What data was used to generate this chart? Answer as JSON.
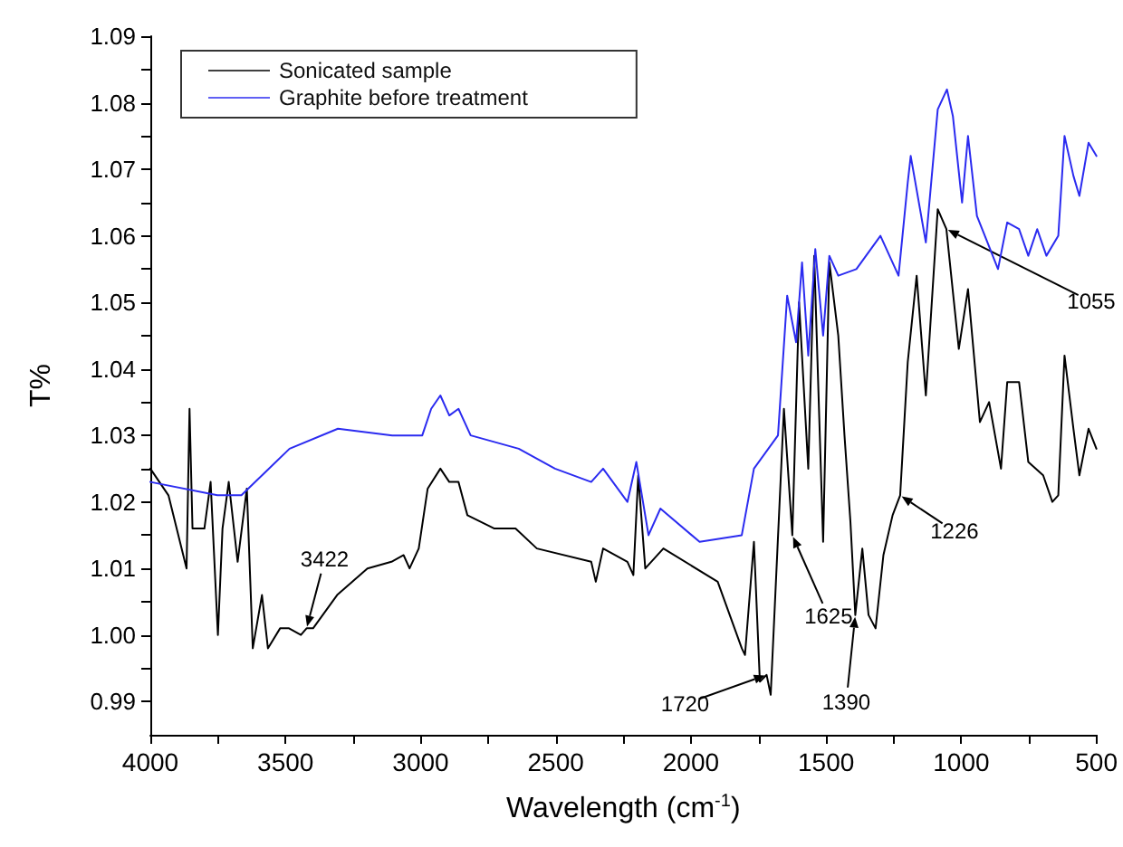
{
  "chart_data": {
    "type": "line",
    "xlabel": "Wavelength (cm$^{-1}$)",
    "ylabel": "T%",
    "xlim": [
      4000,
      500
    ],
    "xticks": [
      4000,
      {
        "value": 3750,
        "label": null
      },
      3500,
      {
        "value": 3250,
        "label": null
      },
      3000,
      {
        "value": 2750,
        "label": null
      },
      2500,
      {
        "value": 2250,
        "label": null
      },
      2000,
      {
        "value": 1750,
        "label": null
      },
      1500,
      {
        "value": 1250,
        "label": null
      },
      1000,
      {
        "value": 750,
        "label": null
      },
      500
    ],
    "ylim": [
      0.985,
      1.09
    ],
    "yticks": [
      {
        "value": 0.99,
        "label": "0.99"
      },
      {
        "value": 0.995,
        "label": null
      },
      {
        "value": 1.0,
        "label": "1.00"
      },
      {
        "value": 1.005,
        "label": null
      },
      {
        "value": 1.01,
        "label": "1.01"
      },
      {
        "value": 1.015,
        "label": null
      },
      {
        "value": 1.02,
        "label": "1.02"
      },
      {
        "value": 1.025,
        "label": null
      },
      {
        "value": 1.03,
        "label": "1.03"
      },
      {
        "value": 1.035,
        "label": null
      },
      {
        "value": 1.04,
        "label": "1.04"
      },
      {
        "value": 1.045,
        "label": null
      },
      {
        "value": 1.05,
        "label": "1.05"
      },
      {
        "value": 1.055,
        "label": null
      },
      {
        "value": 1.06,
        "label": "1.06"
      },
      {
        "value": 1.065,
        "label": null
      },
      {
        "value": 1.07,
        "label": "1.07"
      },
      {
        "value": 1.075,
        "label": null
      },
      {
        "value": 1.08,
        "label": "1.08"
      },
      {
        "value": 1.085,
        "label": null
      },
      {
        "value": 1.09,
        "label": "1.09"
      }
    ],
    "grid": false,
    "legend": "top left",
    "marker": "none",
    "line_style": "solid",
    "series": [
      {
        "name": "Sonicated sample",
        "color": "#000000",
        "x": [
          4000,
          3933,
          3866,
          3855,
          3844,
          3800,
          3777,
          3750,
          3733,
          3710,
          3677,
          3643,
          3621,
          3587,
          3565,
          3520,
          3487,
          3443,
          3422,
          3398,
          3309,
          3197,
          3108,
          3063,
          3041,
          3007,
          2974,
          2927,
          2894,
          2860,
          2827,
          2727,
          2649,
          2570,
          2369,
          2352,
          2325,
          2235,
          2213,
          2195,
          2169,
          2102,
          1901,
          1812,
          1800,
          1767,
          1745,
          1720,
          1705,
          1656,
          1625,
          1600,
          1566,
          1544,
          1511,
          1488,
          1455,
          1432,
          1410,
          1392,
          1366,
          1343,
          1317,
          1288,
          1254,
          1226,
          1198,
          1165,
          1131,
          1087,
          1055,
          1009,
          975,
          931,
          897,
          853,
          830,
          786,
          752,
          697,
          663,
          641,
          618,
          585,
          563,
          529,
          500
        ],
        "values": [
          1.025,
          1.021,
          1.01,
          1.034,
          1.016,
          1.016,
          1.023,
          1.0,
          1.016,
          1.023,
          1.011,
          1.022,
          0.998,
          1.006,
          0.998,
          1.001,
          1.001,
          1.0,
          1.001,
          1.001,
          1.006,
          1.01,
          1.011,
          1.012,
          1.01,
          1.013,
          1.022,
          1.025,
          1.023,
          1.023,
          1.018,
          1.016,
          1.016,
          1.013,
          1.011,
          1.008,
          1.013,
          1.011,
          1.009,
          1.024,
          1.01,
          1.013,
          1.008,
          0.998,
          0.997,
          1.014,
          0.993,
          0.994,
          0.991,
          1.034,
          1.015,
          1.05,
          1.025,
          1.057,
          1.014,
          1.056,
          1.045,
          1.03,
          1.017,
          1.003,
          1.013,
          1.003,
          1.001,
          1.012,
          1.018,
          1.021,
          1.041,
          1.054,
          1.036,
          1.064,
          1.061,
          1.043,
          1.052,
          1.032,
          1.035,
          1.025,
          1.038,
          1.038,
          1.026,
          1.024,
          1.02,
          1.021,
          1.042,
          1.031,
          1.024,
          1.031,
          1.028
        ]
      },
      {
        "name": "Graphite before treatment",
        "color": "#2b2bf0",
        "x": [
          4000,
          3752,
          3663,
          3485,
          3306,
          3105,
          2994,
          2961,
          2927,
          2894,
          2860,
          2815,
          2637,
          2503,
          2369,
          2325,
          2235,
          2202,
          2157,
          2113,
          1968,
          1812,
          1767,
          1678,
          1644,
          1611,
          1589,
          1566,
          1540,
          1511,
          1488,
          1455,
          1388,
          1299,
          1232,
          1198,
          1187,
          1131,
          1087,
          1053,
          1031,
          997,
          975,
          942,
          864,
          830,
          786,
          752,
          719,
          685,
          641,
          618,
          585,
          563,
          529,
          500
        ],
        "values": [
          1.023,
          1.021,
          1.021,
          1.028,
          1.031,
          1.03,
          1.03,
          1.034,
          1.036,
          1.033,
          1.034,
          1.03,
          1.028,
          1.025,
          1.023,
          1.025,
          1.02,
          1.026,
          1.015,
          1.019,
          1.014,
          1.015,
          1.025,
          1.03,
          1.051,
          1.044,
          1.056,
          1.042,
          1.058,
          1.045,
          1.057,
          1.054,
          1.055,
          1.06,
          1.054,
          1.068,
          1.072,
          1.059,
          1.079,
          1.082,
          1.078,
          1.065,
          1.075,
          1.063,
          1.055,
          1.062,
          1.061,
          1.057,
          1.061,
          1.057,
          1.06,
          1.075,
          1.069,
          1.066,
          1.074,
          1.072
        ]
      }
    ],
    "annotations": [
      {
        "text": "3422",
        "x": 3422,
        "y": 1.001
      },
      {
        "text": "1720",
        "x": 1720,
        "y": 0.994
      },
      {
        "text": "1625",
        "x": 1625,
        "y": 1.015
      },
      {
        "text": "1390",
        "x": 1392,
        "y": 1.003
      },
      {
        "text": "1226",
        "x": 1226,
        "y": 1.021
      },
      {
        "text": "1055",
        "x": 1055,
        "y": 1.061
      }
    ]
  }
}
